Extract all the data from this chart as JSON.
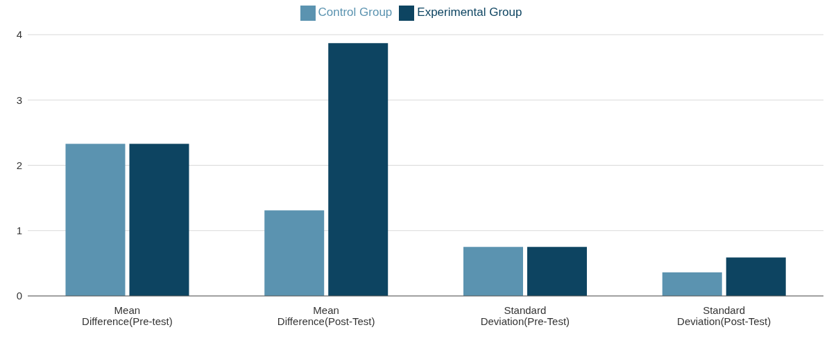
{
  "chart_data": {
    "type": "bar",
    "categories": [
      "Mean Difference(Pre-test)",
      "Mean Difference(Post-Test)",
      "Standard Deviation(Pre-Test)",
      "Standard Deviation(Post-Test)"
    ],
    "series": [
      {
        "name": "Control Group",
        "color": "#5b93b0",
        "values": [
          2.33,
          1.31,
          0.75,
          0.36
        ]
      },
      {
        "name": "Experimental Group",
        "color": "#0d4461",
        "values": [
          2.33,
          3.87,
          0.75,
          0.59
        ]
      }
    ],
    "ylim": [
      0,
      4
    ],
    "yticks": [
      0,
      1,
      2,
      3,
      4
    ],
    "grid": "y",
    "legend": "top"
  }
}
